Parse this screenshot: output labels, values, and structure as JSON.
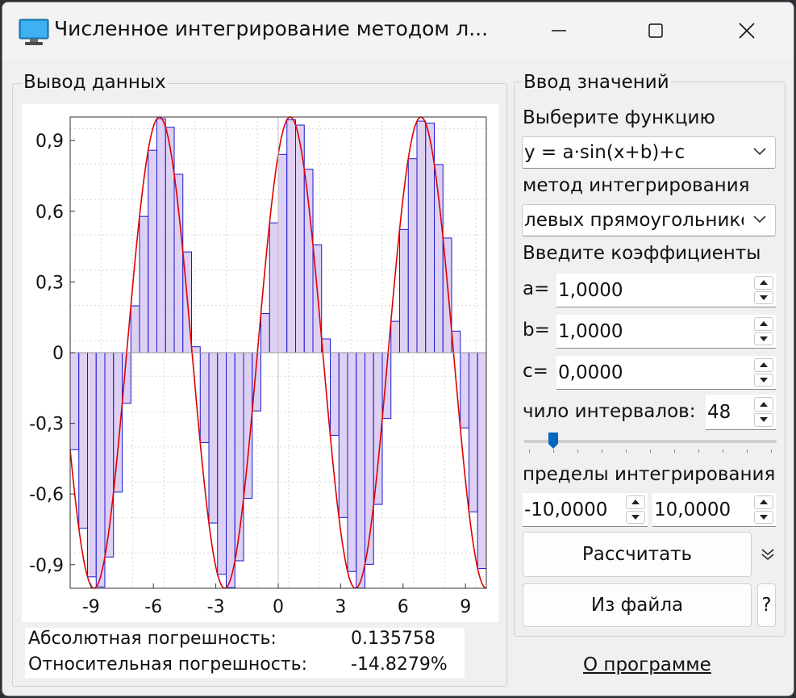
{
  "window": {
    "title": "Численное интегрирование методом л..."
  },
  "output_group": {
    "title": "Вывод данных"
  },
  "input_group": {
    "title": "Ввод значений",
    "function_label": "Выберите функцию",
    "function_value": "y = a·sin(x+b)+c",
    "method_label": "метод интегрирования",
    "method_value": "левых прямоугольников",
    "coef_label": "Введите коэффициенты",
    "a_label": "a=",
    "a_value": "1,0000",
    "b_label": "b=",
    "b_value": "1,0000",
    "c_label": "c=",
    "c_value": "0,0000",
    "intervals_label": "чило интервалов:",
    "intervals_value": "48",
    "intervals_slider_fraction": 0.1,
    "limits_label": "пределы интегрирования",
    "lower_limit": "-10,0000",
    "upper_limit": "10,0000",
    "calc_button": "Рассчитать",
    "file_button": "Из файла",
    "help_button": "?"
  },
  "results": {
    "abs_label": "Абсолютная погрешность:",
    "abs_value": "0.135758",
    "rel_label": "Относительная погрешность:",
    "rel_value": "-14.8279%"
  },
  "about_link": "О программе",
  "chart_data": {
    "type": "bar",
    "function": "y = 1·sin(x+1)+0",
    "method": "left rectangles",
    "intervals": 48,
    "xlim": [
      -10,
      10
    ],
    "ylim": [
      -1,
      1
    ],
    "x_ticks": [
      "-9",
      "-6",
      "-3",
      "0",
      "3",
      "6",
      "9"
    ],
    "x_tick_values": [
      -9,
      -6,
      -3,
      0,
      3,
      6,
      9
    ],
    "y_ticks": [
      "0,9",
      "0,6",
      "0,3",
      "0",
      "-0,3",
      "-0,6",
      "-0,9"
    ],
    "y_tick_values": [
      0.9,
      0.6,
      0.3,
      0,
      -0.3,
      -0.6,
      -0.9
    ],
    "grid": true,
    "curve_color": "#e00000",
    "bar_fill": "#d8c8f0",
    "bar_stroke": "#1a1ad0"
  },
  "colors": {
    "window_bg": "#f0f0f0",
    "accent": "#0067c0"
  }
}
